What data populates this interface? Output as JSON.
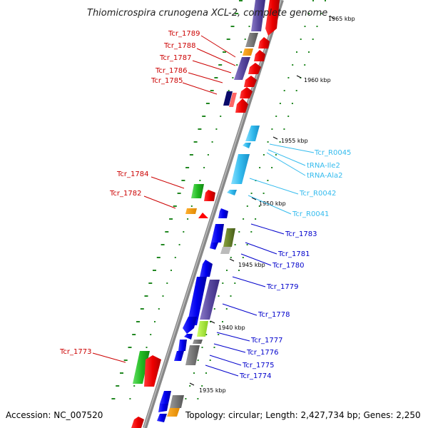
{
  "title": "Thiomicrospira crunogena XCL-2, complete genome",
  "footer": {
    "accession": "Accession: NC_007520",
    "info": "Topology: circular; Length: 2,427,734 bp; Genes: 2,250"
  },
  "colors": {
    "red_label": "#cc0000",
    "cyan_label": "#33bbee",
    "blue_label": "#0000cc",
    "backbone": "#888888",
    "tick": "#228822"
  },
  "kbp_marks": [
    {
      "label": "1965 kbp"
    },
    {
      "label": "1960 kbp"
    },
    {
      "label": "1955 kbp"
    },
    {
      "label": "1950 kbp"
    },
    {
      "label": "1945 kbp"
    },
    {
      "label": "1940 kbp"
    },
    {
      "label": "1935 kbp"
    }
  ],
  "labels_left": [
    {
      "text": "Tcr_1789"
    },
    {
      "text": "Tcr_1788"
    },
    {
      "text": "Tcr_1787"
    },
    {
      "text": "Tcr_1786"
    },
    {
      "text": "Tcr_1785"
    },
    {
      "text": "Tcr_1784"
    },
    {
      "text": "Tcr_1782"
    },
    {
      "text": "Tcr_1773"
    }
  ],
  "labels_right_rna": [
    {
      "text": "Tcr_R0045"
    },
    {
      "text": "tRNA-Ile2"
    },
    {
      "text": "tRNA-Ala2"
    },
    {
      "text": "Tcr_R0042"
    },
    {
      "text": "Tcr_R0041"
    }
  ],
  "labels_right": [
    {
      "text": "Tcr_1783"
    },
    {
      "text": "Tcr_1781"
    },
    {
      "text": "Tcr_1780"
    },
    {
      "text": "Tcr_1779"
    },
    {
      "text": "Tcr_1778"
    },
    {
      "text": "Tcr_1777"
    },
    {
      "text": "Tcr_1776"
    },
    {
      "text": "Tcr_1775"
    },
    {
      "text": "Tcr_1774"
    }
  ]
}
